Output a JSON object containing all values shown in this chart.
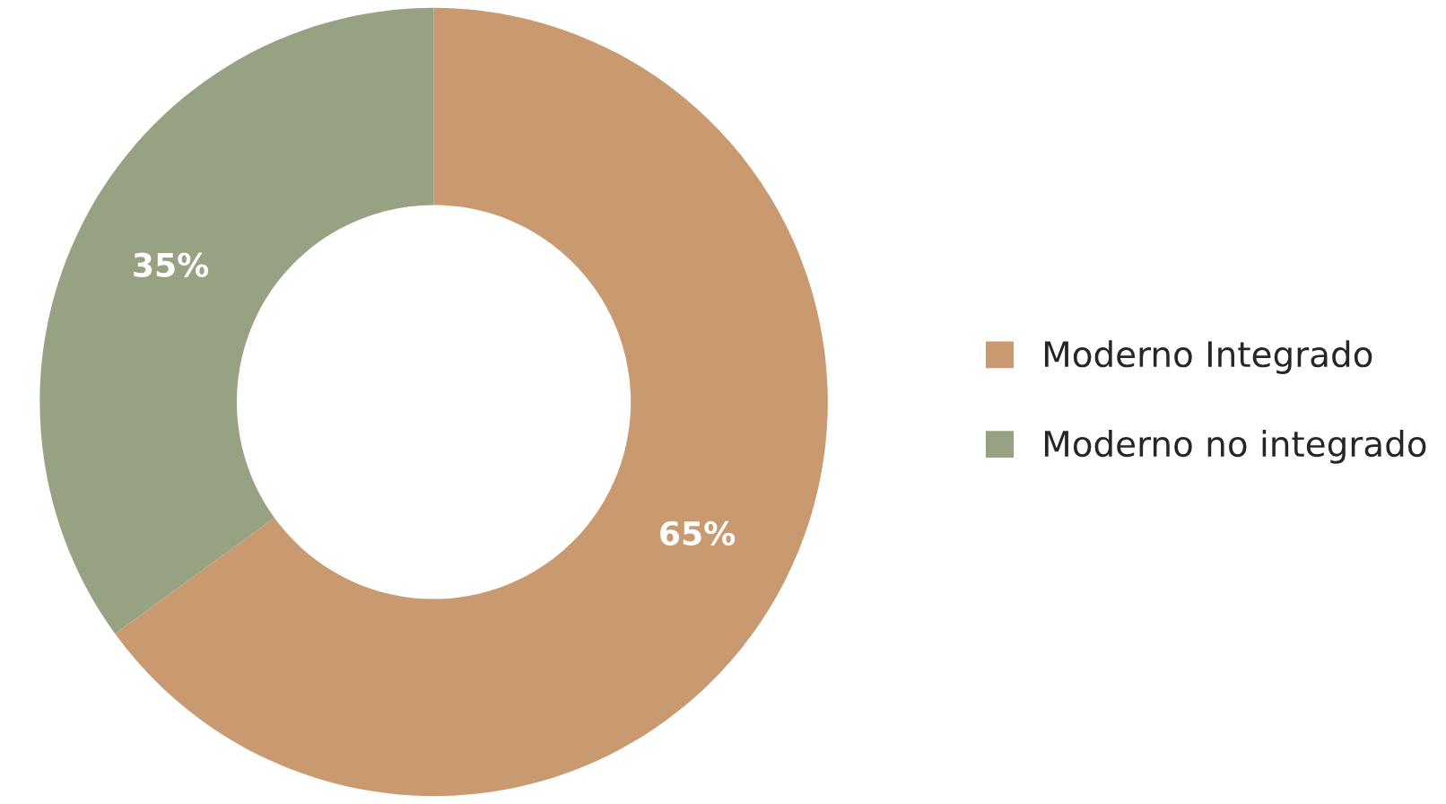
{
  "chart_data": {
    "type": "donut",
    "categories": [
      "Moderno Integrado",
      "Moderno no integrado"
    ],
    "values": [
      65,
      35
    ],
    "colors": [
      "#c99a70",
      "#97a282"
    ],
    "value_labels": [
      "65%",
      "35%"
    ],
    "legend": "right"
  }
}
